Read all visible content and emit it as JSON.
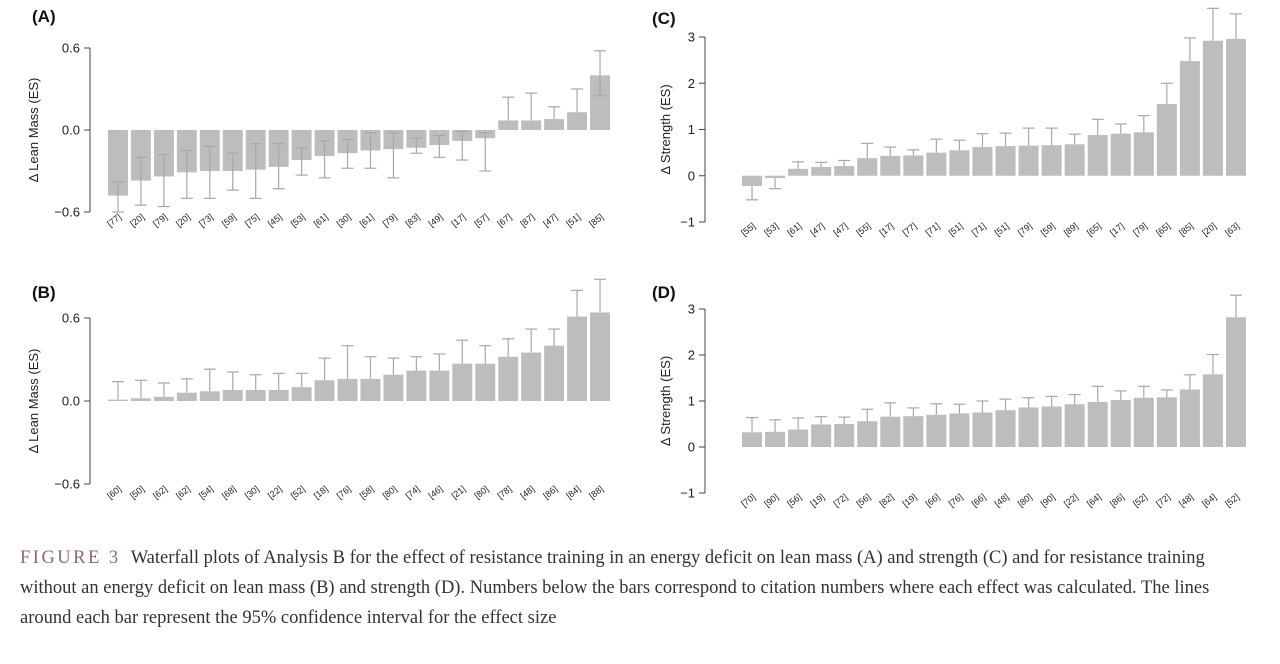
{
  "caption": {
    "figure_label": "FIGURE 3",
    "text": "Waterfall plots of Analysis B for the effect of resistance training in an energy deficit on lean mass (A) and strength (C) and for resistance training without an energy deficit on lean mass (B) and strength (D). Numbers below the bars correspond to citation numbers where each effect was calculated. The lines around each bar represent the 95% confidence interval for the effect size"
  },
  "chart_data": [
    {
      "panel": "(A)",
      "type": "bar",
      "ylabel": "Δ Lean Mass (ES)",
      "yticks": [
        -0.6,
        0.0,
        0.6
      ],
      "ytick_labels": [
        "−0.6",
        "0.0",
        "0.6"
      ],
      "ylim": [
        -0.62,
        0.62
      ],
      "categories": [
        "[77]",
        "[20]",
        "[79]",
        "[20]",
        "[73]",
        "[59]",
        "[75]",
        "[45]",
        "[53]",
        "[61]",
        "[30]",
        "[61]",
        "[79]",
        "[83]",
        "[49]",
        "[17]",
        "[57]",
        "[67]",
        "[87]",
        "[47]",
        "[51]",
        "[85]"
      ],
      "values": [
        -0.48,
        -0.37,
        -0.34,
        -0.31,
        -0.3,
        -0.3,
        -0.29,
        -0.27,
        -0.22,
        -0.19,
        -0.17,
        -0.15,
        -0.14,
        -0.13,
        -0.11,
        -0.08,
        -0.06,
        0.07,
        0.07,
        0.08,
        0.13,
        0.4
      ],
      "ci_upper": [
        -0.38,
        -0.2,
        -0.18,
        -0.15,
        -0.12,
        -0.17,
        -0.1,
        -0.1,
        -0.13,
        -0.08,
        -0.07,
        -0.02,
        -0.02,
        -0.06,
        -0.04,
        -0.01,
        -0.02,
        0.24,
        0.27,
        0.17,
        0.3,
        0.58
      ],
      "ci_lower": [
        -0.6,
        -0.55,
        -0.56,
        -0.5,
        -0.5,
        -0.44,
        -0.5,
        -0.43,
        -0.33,
        -0.35,
        -0.28,
        -0.28,
        -0.35,
        -0.17,
        -0.2,
        -0.22,
        -0.3,
        0.0,
        0.0,
        0.0,
        0.0,
        0.25
      ]
    },
    {
      "panel": "(B)",
      "type": "bar",
      "ylabel": "Δ Lean Mass (ES)",
      "yticks": [
        -0.6,
        0.0,
        0.6
      ],
      "ytick_labels": [
        "−0.6",
        "0.0",
        "0.6"
      ],
      "ylim": [
        -0.62,
        0.9
      ],
      "categories": [
        "[60]",
        "[50]",
        "[62]",
        "[62]",
        "[54]",
        "[68]",
        "[30]",
        "[22]",
        "[52]",
        "[18]",
        "[76]",
        "[58]",
        "[80]",
        "[74]",
        "[46]",
        "[21]",
        "[80]",
        "[78]",
        "[48]",
        "[86]",
        "[84]",
        "[88]"
      ],
      "values": [
        0.01,
        0.02,
        0.03,
        0.06,
        0.07,
        0.08,
        0.08,
        0.08,
        0.1,
        0.15,
        0.16,
        0.16,
        0.19,
        0.22,
        0.22,
        0.27,
        0.27,
        0.32,
        0.35,
        0.4,
        0.61,
        0.64
      ],
      "ci_upper": [
        0.14,
        0.15,
        0.13,
        0.16,
        0.23,
        0.21,
        0.19,
        0.2,
        0.2,
        0.31,
        0.4,
        0.32,
        0.31,
        0.32,
        0.34,
        0.44,
        0.4,
        0.45,
        0.52,
        0.52,
        0.8,
        0.88
      ],
      "ci_lower": [
        0.0,
        0.0,
        0.0,
        0.0,
        0.0,
        0.0,
        0.0,
        0.0,
        0.0,
        0.0,
        0.0,
        0.0,
        0.0,
        0.0,
        0.0,
        0.0,
        0.0,
        0.0,
        0.0,
        0.0,
        0.0,
        0.0
      ]
    },
    {
      "panel": "(C)",
      "type": "bar",
      "ylabel": "Δ Strength (ES)",
      "yticks": [
        -1,
        0,
        1,
        2,
        3
      ],
      "ytick_labels": [
        "−1",
        "0",
        "1",
        "2",
        "3"
      ],
      "ylim": [
        -1,
        3.7
      ],
      "categories": [
        "[55]",
        "[53]",
        "[61]",
        "[47]",
        "[47]",
        "[55]",
        "[17]",
        "[77]",
        "[71]",
        "[51]",
        "[71]",
        "[51]",
        "[79]",
        "[59]",
        "[89]",
        "[65]",
        "[17]",
        "[79]",
        "[65]",
        "[85]",
        "[20]",
        "[63]"
      ],
      "values": [
        -0.22,
        -0.05,
        0.15,
        0.19,
        0.21,
        0.38,
        0.43,
        0.44,
        0.5,
        0.55,
        0.62,
        0.64,
        0.65,
        0.66,
        0.68,
        0.88,
        0.91,
        0.94,
        1.55,
        2.48,
        2.92,
        2.96
      ],
      "ci_upper": [
        0.0,
        0.0,
        0.3,
        0.29,
        0.33,
        0.7,
        0.62,
        0.56,
        0.79,
        0.77,
        0.91,
        0.92,
        1.03,
        1.03,
        0.9,
        1.22,
        1.12,
        1.3,
        2.0,
        2.98,
        3.62,
        3.5
      ],
      "ci_lower": [
        -0.52,
        -0.28,
        0.0,
        0.0,
        0.0,
        0.0,
        0.0,
        0.0,
        0.0,
        0.0,
        0.0,
        0.0,
        0.0,
        0.0,
        0.0,
        0.0,
        0.0,
        0.0,
        0.0,
        0.0,
        0.0,
        0.0
      ]
    },
    {
      "panel": "(D)",
      "type": "bar",
      "ylabel": "Δ Strength (ES)",
      "yticks": [
        -1,
        0,
        1,
        2,
        3
      ],
      "ytick_labels": [
        "−1",
        "0",
        "1",
        "2",
        "3"
      ],
      "ylim": [
        -1,
        3.4
      ],
      "categories": [
        "[70]",
        "[90]",
        "[56]",
        "[19]",
        "[72]",
        "[56]",
        "[82]",
        "[19]",
        "[66]",
        "[76]",
        "[66]",
        "[48]",
        "[80]",
        "[90]",
        "[22]",
        "[64]",
        "[86]",
        "[52]",
        "[72]",
        "[48]",
        "[64]",
        "[52]"
      ],
      "values": [
        0.32,
        0.33,
        0.38,
        0.49,
        0.5,
        0.56,
        0.66,
        0.67,
        0.7,
        0.73,
        0.75,
        0.8,
        0.86,
        0.88,
        0.93,
        0.98,
        1.02,
        1.07,
        1.08,
        1.25,
        1.58,
        2.82
      ],
      "ci_upper": [
        0.64,
        0.59,
        0.63,
        0.66,
        0.65,
        0.82,
        0.96,
        0.85,
        0.94,
        0.93,
        1.0,
        1.04,
        1.07,
        1.1,
        1.14,
        1.32,
        1.22,
        1.32,
        1.24,
        1.57,
        2.01,
        3.3
      ],
      "ci_lower": [
        0.0,
        0.0,
        0.0,
        0.0,
        0.0,
        0.0,
        0.0,
        0.0,
        0.0,
        0.0,
        0.0,
        0.0,
        0.0,
        0.0,
        0.0,
        0.0,
        0.0,
        0.0,
        0.0,
        0.0,
        0.0,
        0.0
      ]
    }
  ]
}
